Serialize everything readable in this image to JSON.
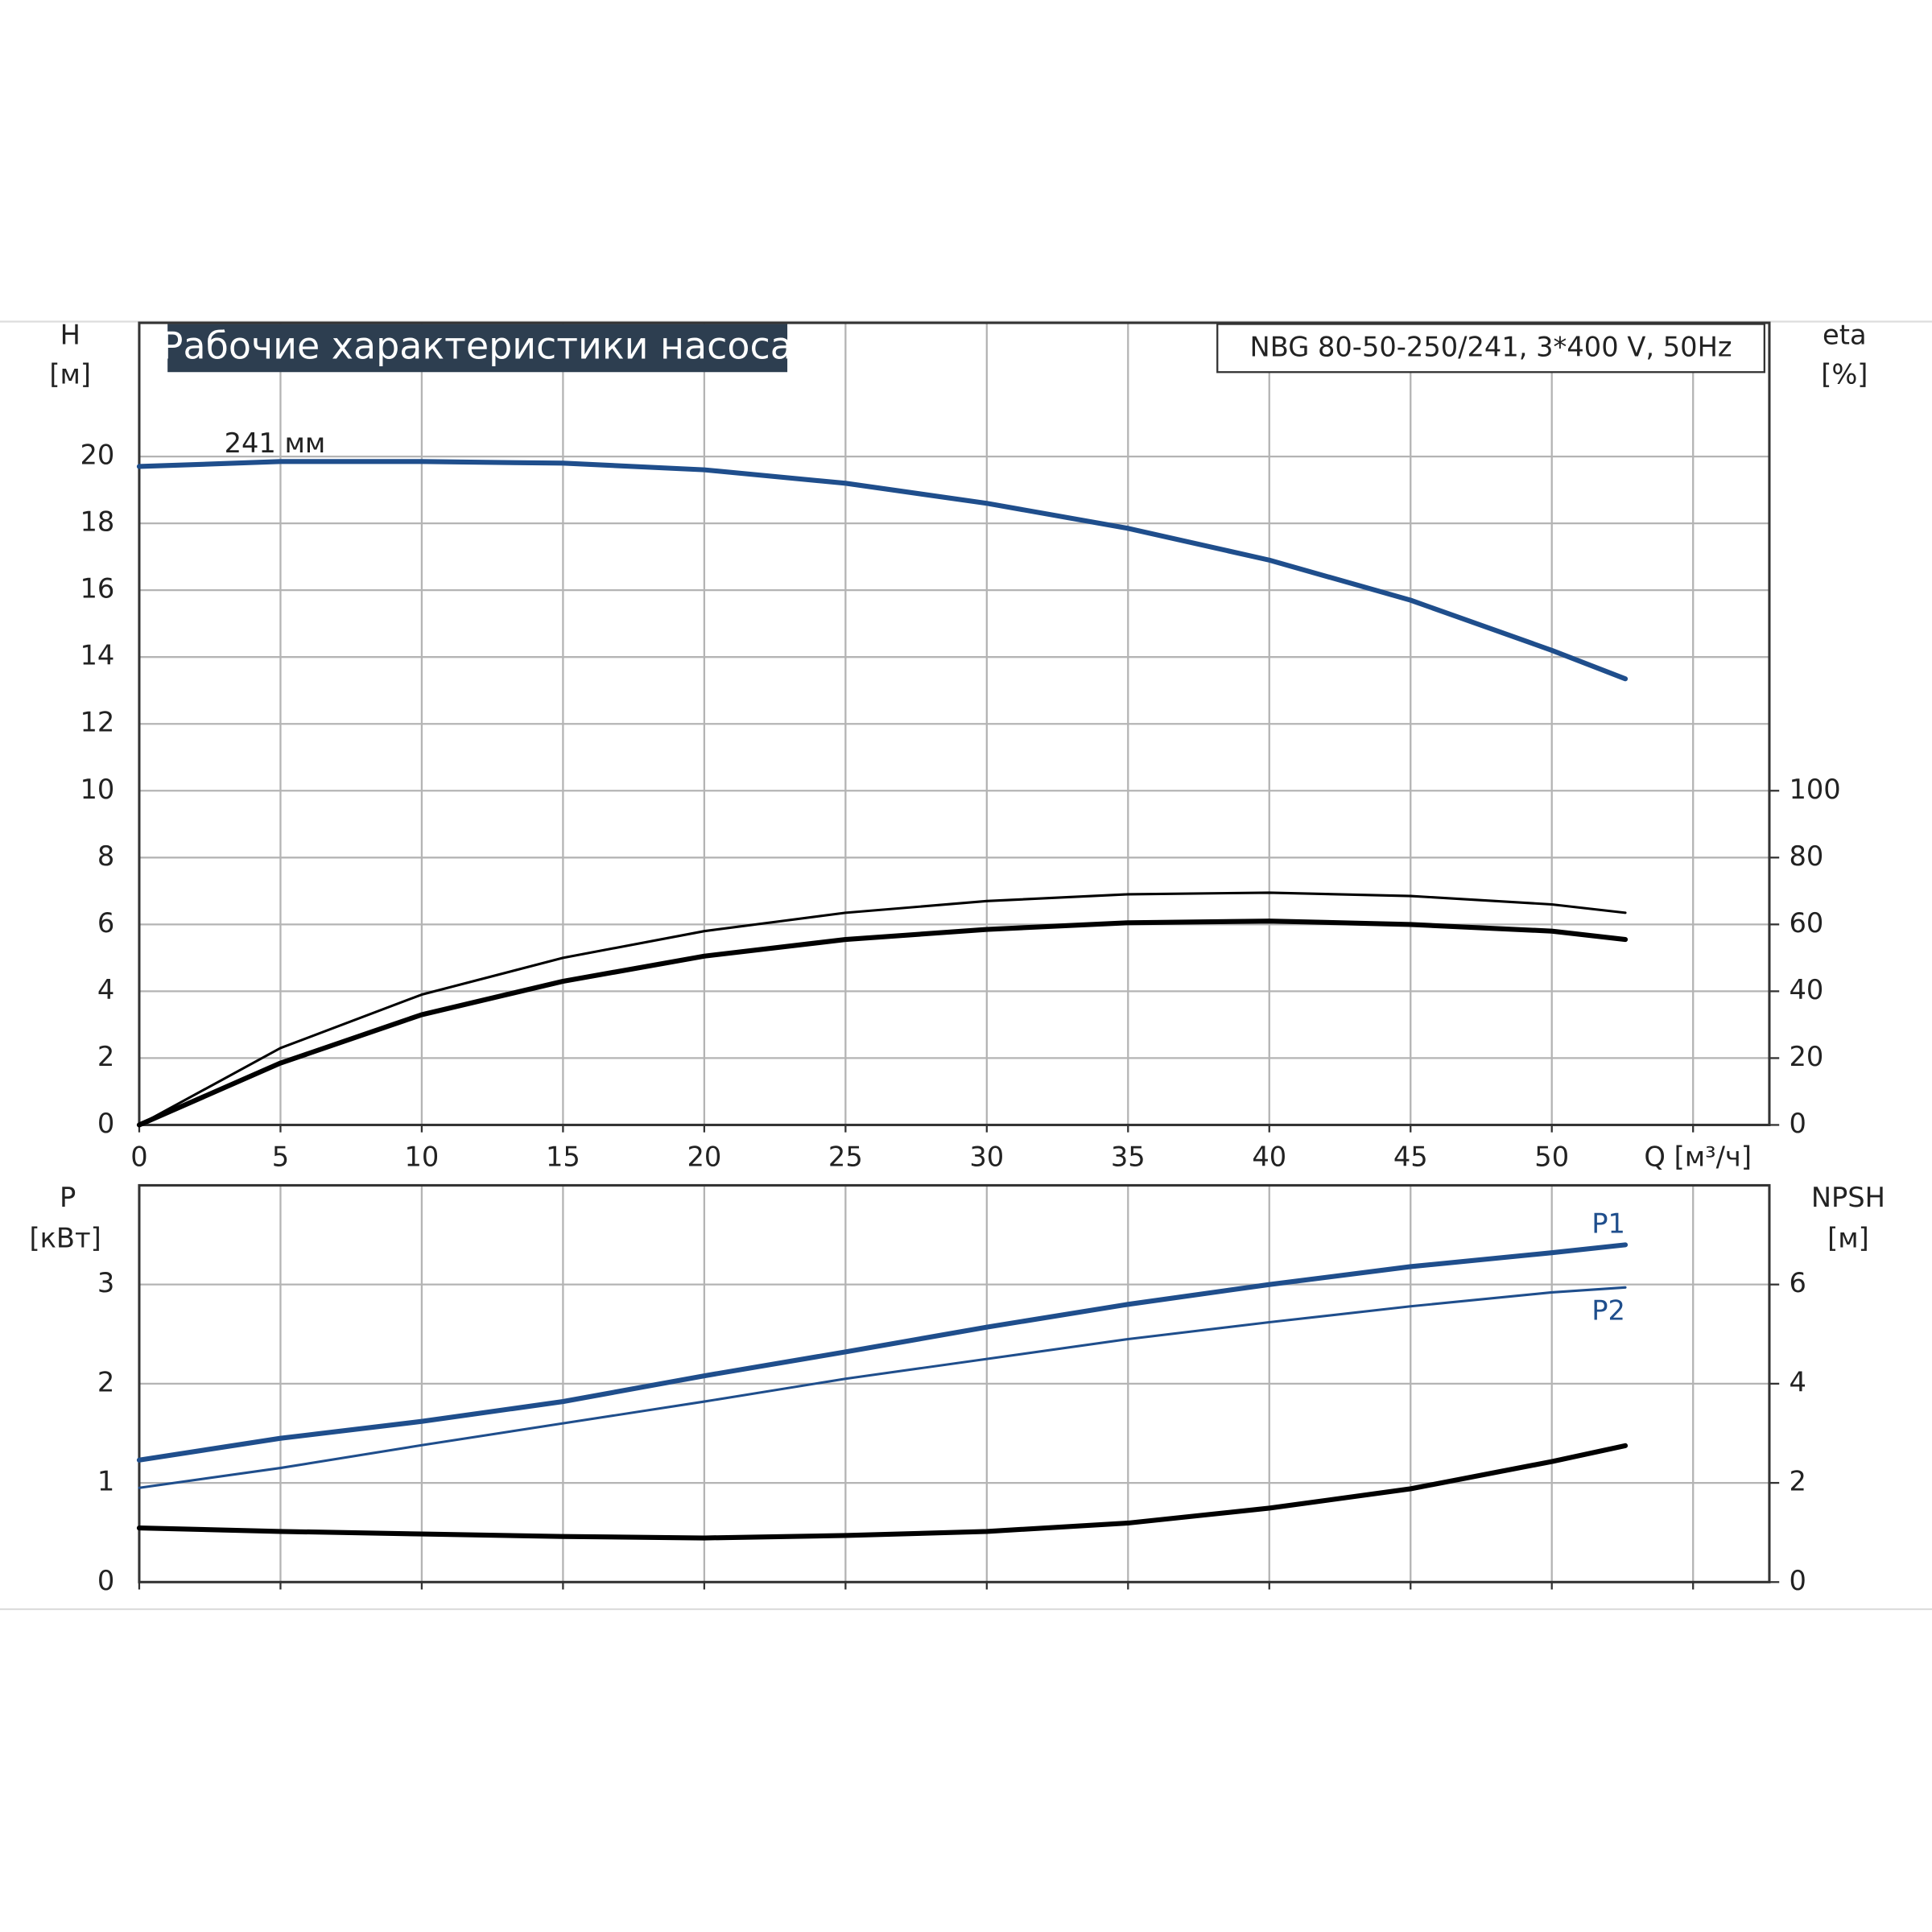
{
  "chart_data": [
    {
      "type": "line",
      "title": "Рабочие характеристики насоса",
      "model": "NBG 80-50-250/241, 3*400 V, 50Hz",
      "ylabel": [
        "H",
        "[м]"
      ],
      "y2label": [
        "eta",
        "[%]"
      ],
      "xlabel": "Q [м³/ч]",
      "annotations": [
        "241 мм"
      ],
      "x": [
        0,
        5,
        10,
        15,
        20,
        25,
        30,
        35,
        40,
        45,
        50,
        52.6
      ],
      "xlim": [
        0,
        57.7
      ],
      "xticks": [
        0,
        5,
        10,
        15,
        20,
        25,
        30,
        35,
        40,
        45,
        50,
        55
      ],
      "show_xtick_labels": true,
      "ylim": [
        0,
        24
      ],
      "yticks": [
        0,
        2,
        4,
        6,
        8,
        10,
        12,
        14,
        16,
        18,
        20
      ],
      "y2lim": [
        0,
        240
      ],
      "y2ticks": [
        0,
        20,
        40,
        60,
        80,
        100
      ],
      "grid": true,
      "series": [
        {
          "color": "#1f4e8c",
          "width": 4,
          "values": [
            19.7,
            19.85,
            19.85,
            19.8,
            19.6,
            19.2,
            18.6,
            17.85,
            16.9,
            15.7,
            14.2,
            13.35
          ]
        },
        {
          "color": "#000000",
          "width": 2,
          "axis": "y2",
          "values": [
            0,
            23,
            39,
            50,
            58,
            63.5,
            67,
            69,
            69.5,
            68.5,
            66,
            63.5
          ]
        },
        {
          "color": "#000000",
          "width": 4,
          "axis": "y2",
          "values": [
            0,
            18.5,
            33,
            43,
            50.5,
            55.5,
            58.5,
            60.5,
            61,
            60,
            58,
            55.5
          ]
        }
      ]
    },
    {
      "type": "line",
      "ylabel": [
        "P",
        "[кВт]"
      ],
      "y2label": [
        "NPSH",
        "[м]"
      ],
      "x": [
        0,
        5,
        10,
        15,
        20,
        25,
        30,
        35,
        40,
        45,
        50,
        52.6
      ],
      "xlim": [
        0,
        57.7
      ],
      "xticks": [
        0,
        5,
        10,
        15,
        20,
        25,
        30,
        35,
        40,
        45,
        50,
        55
      ],
      "show_xtick_labels": false,
      "ylim": [
        0,
        4
      ],
      "yticks": [
        0,
        1,
        2,
        3
      ],
      "y2lim": [
        0,
        8
      ],
      "y2ticks": [
        0,
        2,
        4,
        6
      ],
      "grid": true,
      "series": [
        {
          "name": "P1",
          "color": "#1f4e8c",
          "width": 4,
          "values": [
            1.23,
            1.45,
            1.62,
            1.82,
            2.08,
            2.32,
            2.57,
            2.8,
            3.0,
            3.18,
            3.32,
            3.4
          ]
        },
        {
          "name": "P2",
          "color": "#1f4e8c",
          "width": 2,
          "values": [
            0.95,
            1.15,
            1.38,
            1.6,
            1.82,
            2.05,
            2.25,
            2.45,
            2.62,
            2.78,
            2.92,
            2.97
          ]
        },
        {
          "color": "#000000",
          "width": 4,
          "axis": "y2",
          "values": [
            1.09,
            1.02,
            0.97,
            0.92,
            0.89,
            0.94,
            1.02,
            1.19,
            1.49,
            1.88,
            2.43,
            2.75
          ]
        }
      ]
    }
  ]
}
